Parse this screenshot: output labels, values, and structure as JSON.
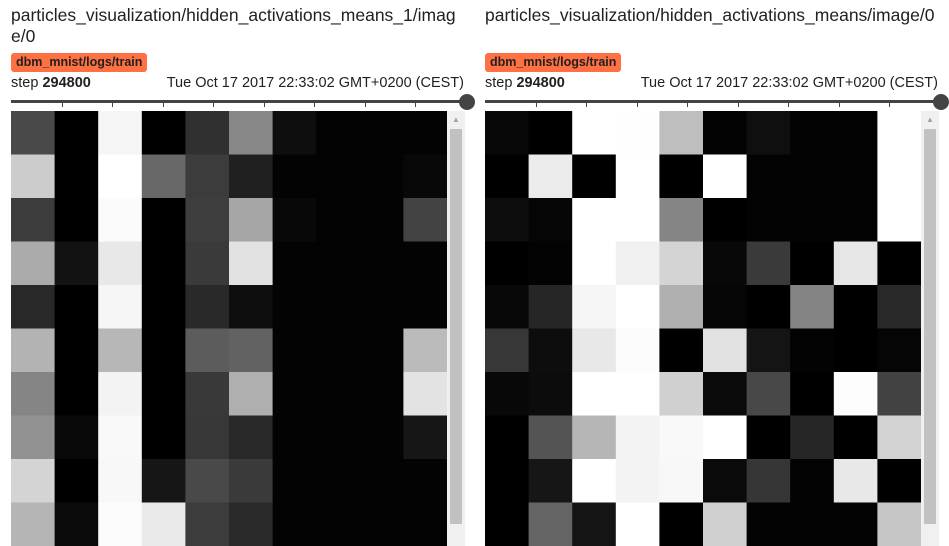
{
  "cards": [
    {
      "title": "particles_visualization/hidden_activations_means_1/image/0",
      "run": "dbm_mnist/logs/train",
      "step_label": "step",
      "step_value": "294800",
      "timestamp": "Tue Oct 17 2017 22:33:02 GMT+0200 (CEST)",
      "scroll_up_glyph": "▲",
      "image": {
        "grid_rows": 10,
        "grid_cols": 10,
        "grayscale": [
          [
            73,
            0,
            245,
            0,
            48,
            136,
            14,
            3,
            3,
            3
          ],
          [
            204,
            0,
            255,
            104,
            60,
            32,
            3,
            3,
            3,
            8
          ],
          [
            60,
            0,
            251,
            0,
            62,
            166,
            8,
            3,
            3,
            67
          ],
          [
            171,
            18,
            232,
            0,
            58,
            226,
            3,
            3,
            3,
            3
          ],
          [
            40,
            0,
            246,
            0,
            41,
            14,
            3,
            3,
            3,
            3
          ],
          [
            179,
            0,
            183,
            0,
            92,
            98,
            3,
            3,
            3,
            187
          ],
          [
            133,
            0,
            243,
            0,
            57,
            175,
            3,
            3,
            3,
            227
          ],
          [
            146,
            9,
            249,
            0,
            55,
            40,
            3,
            3,
            3,
            22
          ],
          [
            212,
            0,
            248,
            22,
            73,
            58,
            3,
            3,
            3,
            3
          ],
          [
            181,
            10,
            252,
            234,
            60,
            42,
            3,
            3,
            3,
            3
          ]
        ]
      }
    },
    {
      "title": "particles_visualization/hidden_activations_means/image/0",
      "run": "dbm_mnist/logs/train",
      "step_label": "step",
      "step_value": "294800",
      "timestamp": "Tue Oct 17 2017 22:33:02 GMT+0200 (CEST)",
      "scroll_up_glyph": "▲",
      "image": {
        "grid_rows": 10,
        "grid_cols": 10,
        "grayscale": [
          [
            8,
            0,
            255,
            254,
            190,
            3,
            15,
            3,
            3,
            255
          ],
          [
            0,
            235,
            0,
            255,
            0,
            255,
            3,
            3,
            3,
            255
          ],
          [
            13,
            5,
            255,
            255,
            133,
            0,
            3,
            3,
            3,
            255
          ],
          [
            0,
            3,
            255,
            240,
            212,
            8,
            58,
            0,
            230,
            0
          ],
          [
            8,
            38,
            245,
            255,
            176,
            5,
            0,
            132,
            0,
            40
          ],
          [
            55,
            13,
            232,
            252,
            0,
            225,
            20,
            3,
            0,
            5
          ],
          [
            8,
            12,
            255,
            255,
            208,
            10,
            72,
            0,
            253,
            66
          ],
          [
            0,
            84,
            182,
            243,
            249,
            255,
            0,
            38,
            0,
            210
          ],
          [
            0,
            22,
            255,
            243,
            248,
            10,
            54,
            3,
            232,
            0
          ],
          [
            0,
            100,
            20,
            255,
            0,
            208,
            3,
            3,
            3,
            198
          ]
        ]
      }
    }
  ]
}
